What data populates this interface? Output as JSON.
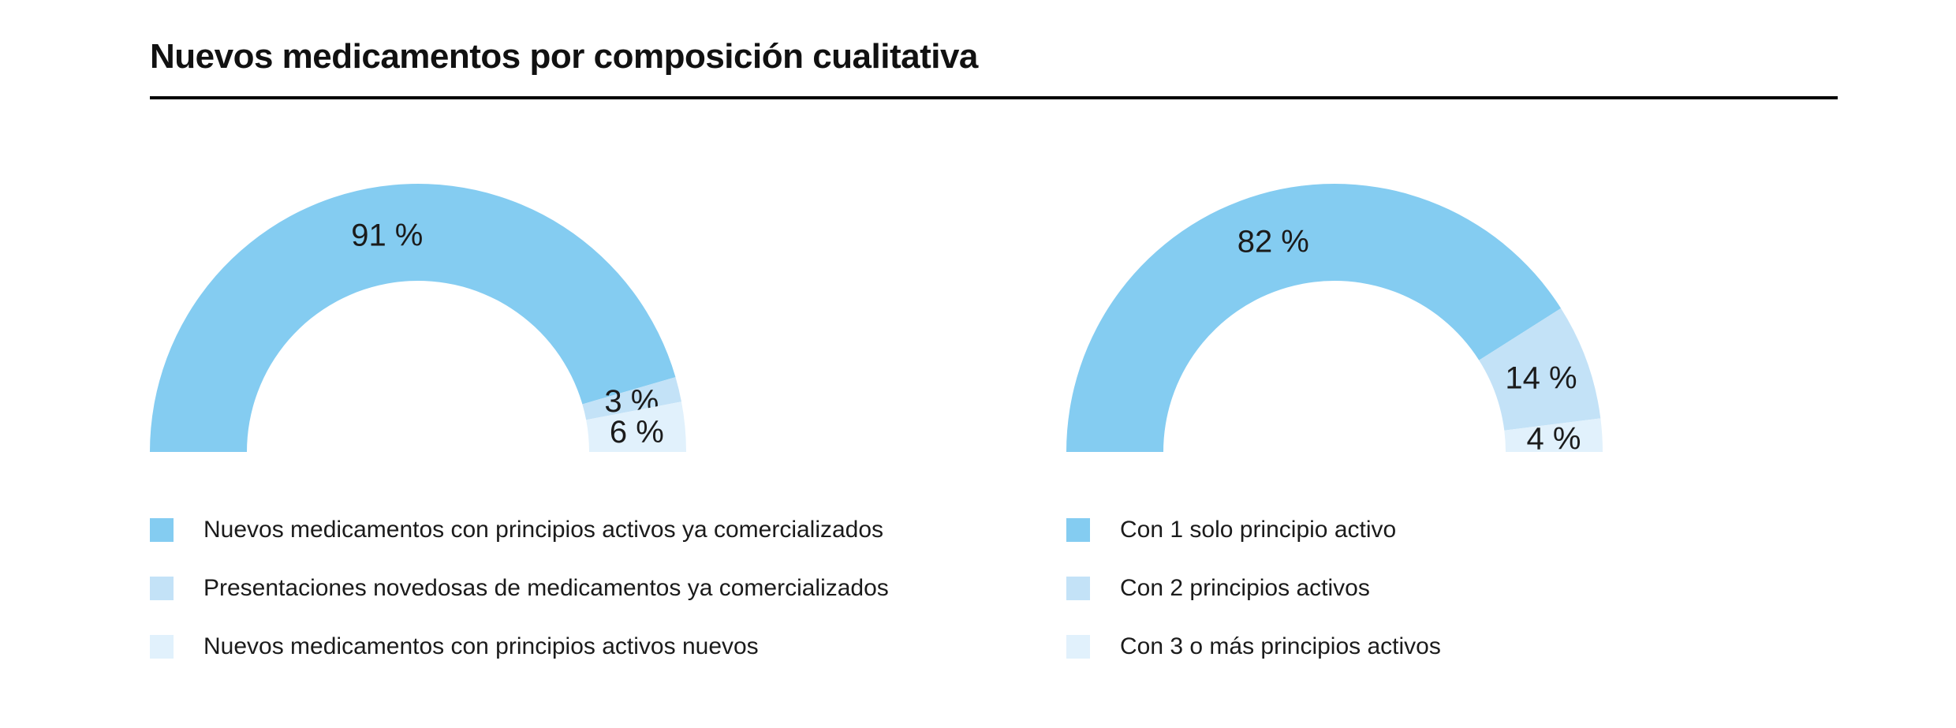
{
  "page": {
    "title": "Nuevos medicamentos por composición cualitativa"
  },
  "colors": {
    "series": [
      "#84CCF1",
      "#C3E2F7",
      "#E1F1FC"
    ],
    "label_text": "#1b1b1b",
    "title_text": "#111111",
    "rule": "#000000",
    "background": "#ffffff"
  },
  "chart_data": [
    {
      "type": "pie",
      "subtype": "half-donut",
      "title": "",
      "legend_position": "bottom-left",
      "slices": [
        {
          "label": "Nuevos medicamentos con principios activos ya comercializados",
          "value": 91,
          "value_label": "91 %"
        },
        {
          "label": "Presentaciones novedosas de medicamentos ya comercializados",
          "value": 3,
          "value_label": "3 %"
        },
        {
          "label": "Nuevos medicamentos con principios activos nuevos",
          "value": 6,
          "value_label": "6 %"
        }
      ]
    },
    {
      "type": "pie",
      "subtype": "half-donut",
      "title": "",
      "legend_position": "bottom-left",
      "slices": [
        {
          "label": "Con 1 solo principio activo",
          "value": 82,
          "value_label": "82 %"
        },
        {
          "label": "Con 2 principios activos",
          "value": 14,
          "value_label": "14 %"
        },
        {
          "label": "Con 3 o más principios activos",
          "value": 4,
          "value_label": "4 %"
        }
      ]
    }
  ]
}
